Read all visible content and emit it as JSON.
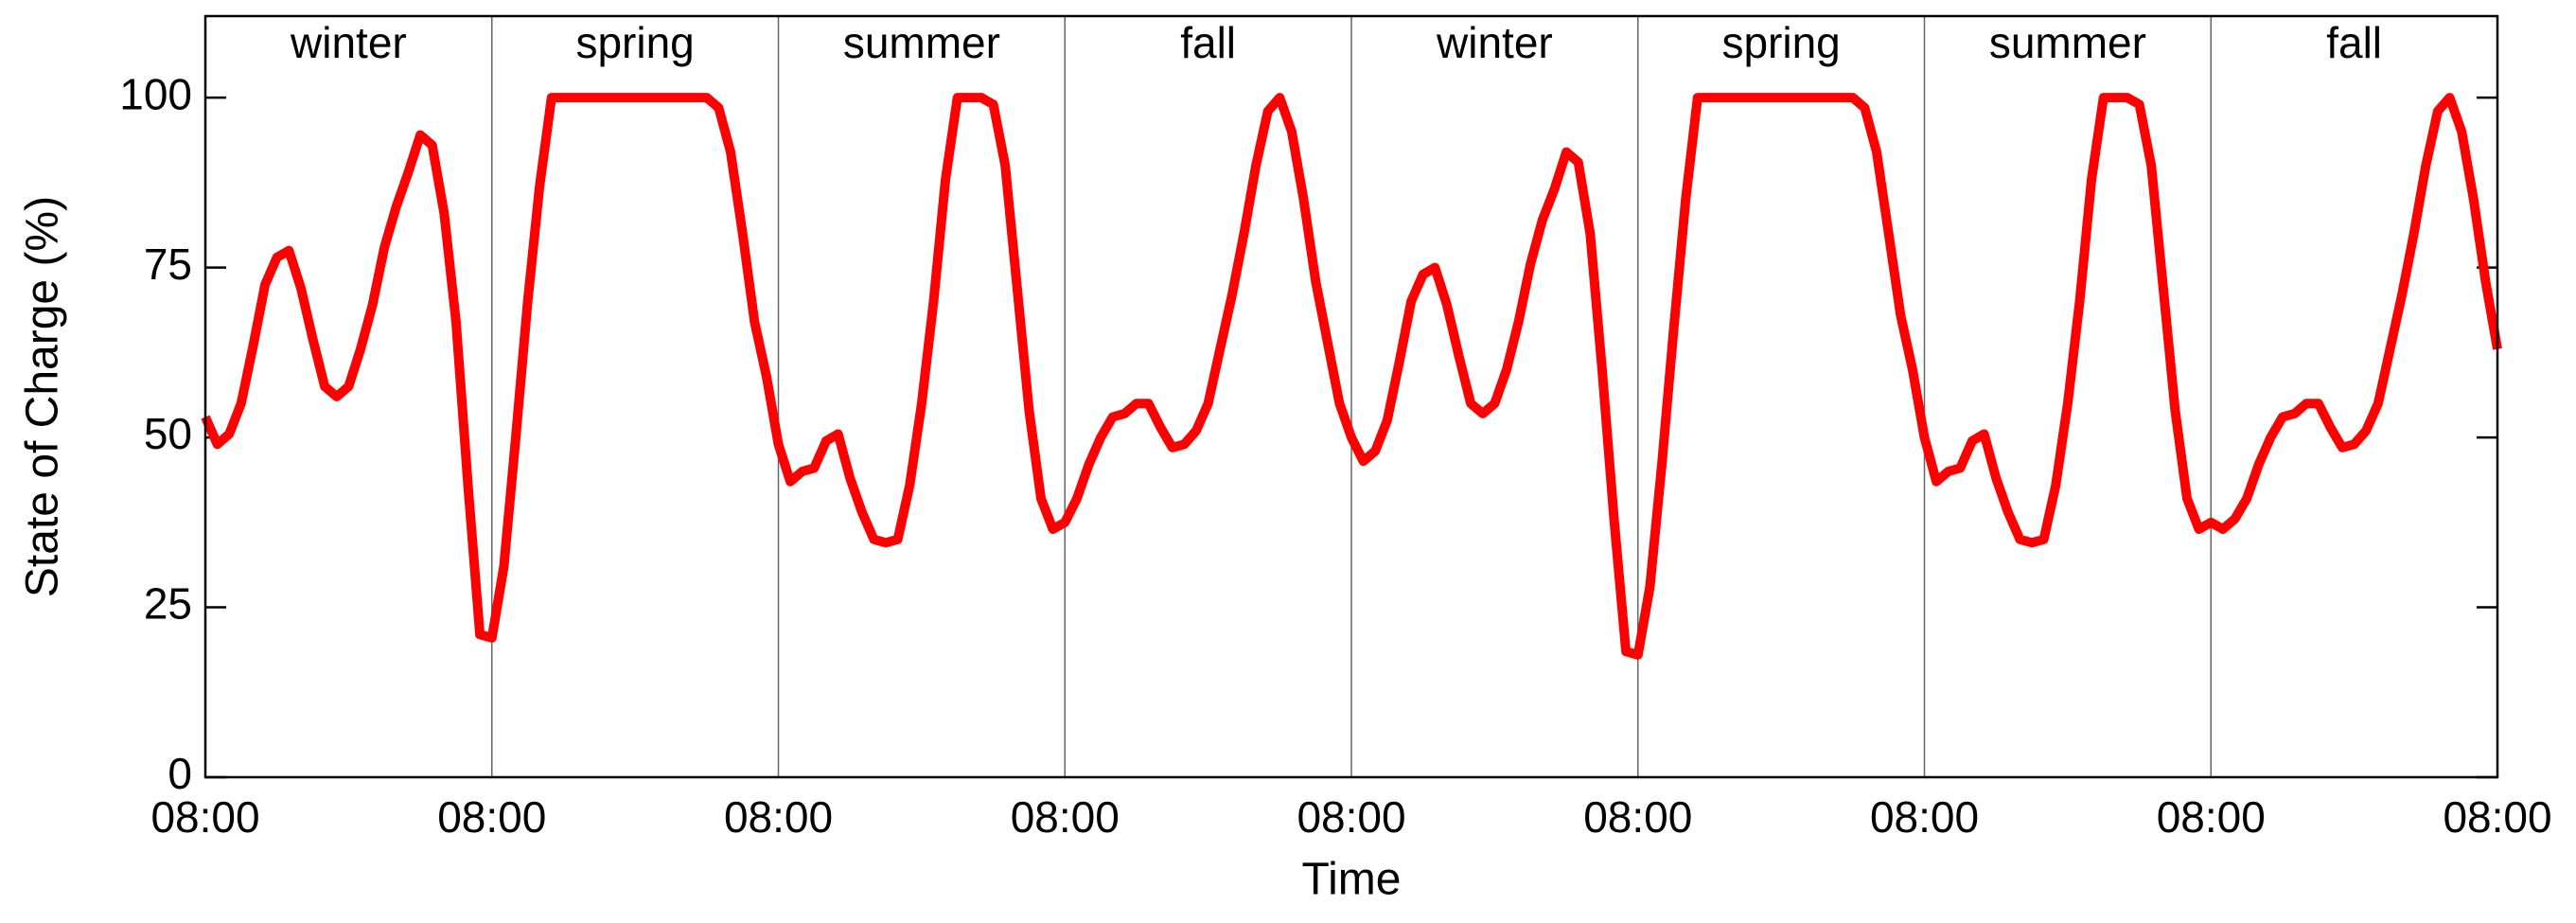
{
  "chart_data": {
    "type": "line",
    "xlabel": "Time",
    "ylabel": "State of Charge (%)",
    "annotations": [
      "winter",
      "spring",
      "summer",
      "fall",
      "winter",
      "spring",
      "summer",
      "fall"
    ],
    "color": "#ff0000",
    "xlim": [
      0,
      192
    ],
    "xticks": [
      {
        "value": 0,
        "label": "08:00"
      },
      {
        "value": 24,
        "label": "08:00"
      },
      {
        "value": 48,
        "label": "08:00"
      },
      {
        "value": 72,
        "label": "08:00"
      },
      {
        "value": 96,
        "label": "08:00"
      },
      {
        "value": 120,
        "label": "08:00"
      },
      {
        "value": 144,
        "label": "08:00"
      },
      {
        "value": 168,
        "label": "08:00"
      },
      {
        "value": 192,
        "label": "08:00"
      }
    ],
    "ylim": [
      0,
      112
    ],
    "yticks": [
      0,
      25,
      50,
      75,
      100
    ],
    "grid": false,
    "x": [
      0,
      1,
      2,
      3,
      4,
      5,
      6,
      7,
      8,
      9,
      10,
      11,
      12,
      13,
      14,
      15,
      16,
      17,
      18,
      19,
      20,
      21,
      22,
      23,
      24,
      25,
      26,
      27,
      28,
      29,
      30,
      31,
      32,
      33,
      34,
      35,
      36,
      37,
      38,
      39,
      40,
      41,
      42,
      43,
      44,
      45,
      46,
      47,
      48,
      49,
      50,
      51,
      52,
      53,
      54,
      55,
      56,
      57,
      58,
      59,
      60,
      61,
      62,
      63,
      64,
      65,
      66,
      67,
      68,
      69,
      70,
      71,
      72,
      73,
      74,
      75,
      76,
      77,
      78,
      79,
      80,
      81,
      82,
      83,
      84,
      85,
      86,
      87,
      88,
      89,
      90,
      91,
      92,
      93,
      94,
      95,
      96,
      97,
      98,
      99,
      100,
      101,
      102,
      103,
      104,
      105,
      106,
      107,
      108,
      109,
      110,
      111,
      112,
      113,
      114,
      115,
      116,
      117,
      118,
      119,
      120,
      121,
      122,
      123,
      124,
      125,
      126,
      127,
      128,
      129,
      130,
      131,
      132,
      133,
      134,
      135,
      136,
      137,
      138,
      139,
      140,
      141,
      142,
      143,
      144,
      145,
      146,
      147,
      148,
      149,
      150,
      151,
      152,
      153,
      154,
      155,
      156,
      157,
      158,
      159,
      160,
      161,
      162,
      163,
      164,
      165,
      166,
      167,
      168,
      169,
      170,
      171,
      172,
      173,
      174,
      175,
      176,
      177,
      178,
      179,
      180,
      181,
      182,
      183,
      184,
      185,
      186,
      187,
      188,
      189,
      190,
      191,
      192
    ],
    "values": [
      53,
      49,
      50.5,
      55,
      63.5,
      72.5,
      76.5,
      77.5,
      72,
      64.5,
      57.5,
      56,
      57.5,
      63,
      69.5,
      78,
      84,
      89,
      94.5,
      93,
      83,
      67,
      43,
      21,
      20.5,
      31,
      50,
      70,
      87,
      100,
      100,
      100,
      100,
      100,
      100,
      100,
      100,
      100,
      100,
      100,
      100,
      100,
      100,
      98.5,
      92,
      80,
      67,
      59,
      49,
      43.5,
      45,
      45.5,
      49.5,
      50.5,
      44,
      39,
      35,
      34.5,
      35,
      43,
      55,
      70,
      88,
      100,
      100,
      100,
      99,
      90,
      72,
      54,
      41,
      36.5,
      37.5,
      41,
      46,
      50,
      53,
      53.5,
      55,
      55,
      51.5,
      48.5,
      49,
      51,
      55,
      63,
      71,
      80,
      90,
      98,
      100,
      95,
      85,
      73,
      64,
      55,
      50,
      46.5,
      48,
      52.5,
      61,
      70,
      74,
      75,
      69.5,
      62,
      55,
      53.5,
      55,
      60,
      67,
      75.5,
      82,
      86.5,
      92,
      90.5,
      80,
      60,
      38,
      18.5,
      18,
      28,
      46,
      66,
      85,
      100,
      100,
      100,
      100,
      100,
      100,
      100,
      100,
      100,
      100,
      100,
      100,
      100,
      100,
      98.5,
      92,
      80,
      68,
      60,
      50,
      43.5,
      45,
      45.5,
      49.5,
      50.5,
      44,
      39,
      35,
      34.5,
      35,
      43,
      55,
      70,
      88,
      100,
      100,
      100,
      99,
      90,
      72,
      54,
      41,
      36.5,
      37.5,
      36.5,
      38,
      41,
      46,
      50,
      53,
      53.5,
      55,
      55,
      51.5,
      48.5,
      49,
      51,
      55,
      63,
      71,
      80,
      90,
      98,
      100,
      95,
      85,
      73,
      63
    ]
  }
}
